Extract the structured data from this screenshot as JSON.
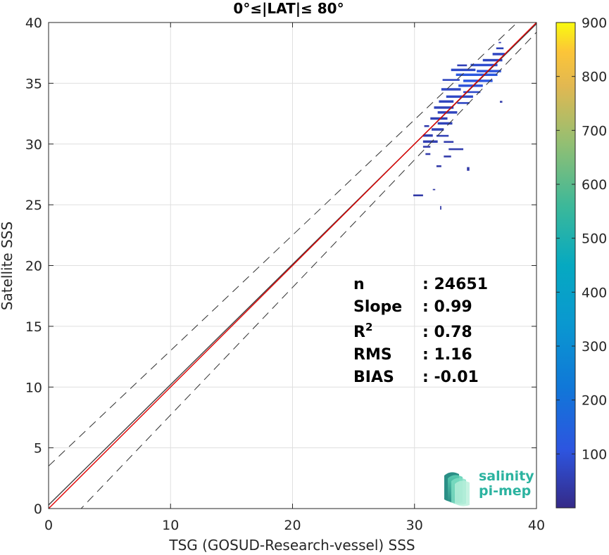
{
  "chart_data": {
    "type": "heatmap",
    "title": "0°≤|LAT|≤ 80°",
    "xlabel": "TSG (GOSUD-Research-vessel) SSS",
    "ylabel": "Satellite SSS",
    "xlim": [
      0,
      40
    ],
    "ylim": [
      0,
      40
    ],
    "x_ticks": [
      "0",
      "10",
      "20",
      "30",
      "40"
    ],
    "y_ticks": [
      "0",
      "5",
      "10",
      "15",
      "20",
      "25",
      "30",
      "35",
      "40"
    ],
    "grid": true,
    "colorbar": {
      "range": [
        0,
        900
      ],
      "ticks": [
        "100",
        "200",
        "300",
        "400",
        "500",
        "600",
        "700",
        "800",
        "900"
      ],
      "colormap": "parula"
    },
    "reference_lines": [
      {
        "name": "fit",
        "slope": 0.99,
        "intercept": 0.3,
        "color": "#404040"
      },
      {
        "name": "one-to-one",
        "slope": 1.0,
        "intercept": 0.0,
        "color": "#e00000"
      },
      {
        "name": "upper bound",
        "slope": 0.95,
        "intercept": 3.5,
        "color": "#303030",
        "dashed": true
      },
      {
        "name": "lower bound",
        "slope": 1.05,
        "intercept": -2.8,
        "color": "#303030",
        "dashed": true
      }
    ],
    "density_cells": [
      {
        "x": 36.9,
        "y": 38.3,
        "w": 0.2,
        "h": 0.1,
        "count": 20
      },
      {
        "x": 36.7,
        "y": 37.8,
        "w": 0.6,
        "h": 0.15,
        "count": 35
      },
      {
        "x": 36.4,
        "y": 37.3,
        "w": 1.0,
        "h": 0.2,
        "count": 45
      },
      {
        "x": 35.6,
        "y": 36.8,
        "w": 1.6,
        "h": 0.2,
        "count": 40
      },
      {
        "x": 33.5,
        "y": 36.4,
        "w": 0.8,
        "h": 0.15,
        "count": 30
      },
      {
        "x": 34.6,
        "y": 36.4,
        "w": 2.2,
        "h": 0.2,
        "count": 60
      },
      {
        "x": 33.0,
        "y": 36.0,
        "w": 2.0,
        "h": 0.2,
        "count": 50
      },
      {
        "x": 35.1,
        "y": 35.9,
        "w": 2.0,
        "h": 0.2,
        "count": 75
      },
      {
        "x": 33.4,
        "y": 35.6,
        "w": 3.4,
        "h": 0.2,
        "count": 90
      },
      {
        "x": 32.3,
        "y": 35.2,
        "w": 1.4,
        "h": 0.15,
        "count": 40
      },
      {
        "x": 34.0,
        "y": 35.1,
        "w": 2.4,
        "h": 0.2,
        "count": 85
      },
      {
        "x": 33.6,
        "y": 34.7,
        "w": 2.0,
        "h": 0.2,
        "count": 70
      },
      {
        "x": 32.2,
        "y": 34.4,
        "w": 1.6,
        "h": 0.2,
        "count": 45
      },
      {
        "x": 34.0,
        "y": 34.2,
        "w": 1.4,
        "h": 0.15,
        "count": 55
      },
      {
        "x": 32.6,
        "y": 33.8,
        "w": 2.2,
        "h": 0.2,
        "count": 50
      },
      {
        "x": 32.0,
        "y": 33.4,
        "w": 1.2,
        "h": 0.2,
        "count": 40
      },
      {
        "x": 33.5,
        "y": 33.3,
        "w": 1.0,
        "h": 0.15,
        "count": 45
      },
      {
        "x": 31.6,
        "y": 32.9,
        "w": 1.6,
        "h": 0.2,
        "count": 35
      },
      {
        "x": 31.9,
        "y": 32.5,
        "w": 1.6,
        "h": 0.2,
        "count": 40
      },
      {
        "x": 31.3,
        "y": 32.0,
        "w": 1.4,
        "h": 0.2,
        "count": 30
      },
      {
        "x": 31.9,
        "y": 31.6,
        "w": 1.2,
        "h": 0.2,
        "count": 35
      },
      {
        "x": 30.8,
        "y": 31.4,
        "w": 0.4,
        "h": 0.15,
        "count": 20
      },
      {
        "x": 31.4,
        "y": 31.1,
        "w": 1.0,
        "h": 0.2,
        "count": 30
      },
      {
        "x": 30.7,
        "y": 30.6,
        "w": 0.8,
        "h": 0.2,
        "count": 25
      },
      {
        "x": 31.8,
        "y": 30.6,
        "w": 1.0,
        "h": 0.15,
        "count": 30
      },
      {
        "x": 30.7,
        "y": 30.1,
        "w": 1.2,
        "h": 0.2,
        "count": 25
      },
      {
        "x": 32.4,
        "y": 30.1,
        "w": 0.8,
        "h": 0.15,
        "count": 20
      },
      {
        "x": 30.7,
        "y": 29.7,
        "w": 0.6,
        "h": 0.15,
        "count": 15
      },
      {
        "x": 32.8,
        "y": 29.5,
        "w": 1.2,
        "h": 0.15,
        "count": 20
      },
      {
        "x": 30.9,
        "y": 29.1,
        "w": 0.4,
        "h": 0.15,
        "count": 15
      },
      {
        "x": 32.4,
        "y": 28.9,
        "w": 0.6,
        "h": 0.15,
        "count": 15
      },
      {
        "x": 31.8,
        "y": 28.1,
        "w": 0.4,
        "h": 0.15,
        "count": 12
      },
      {
        "x": 34.3,
        "y": 27.8,
        "w": 0.2,
        "h": 0.3,
        "count": 12
      },
      {
        "x": 29.9,
        "y": 25.7,
        "w": 0.8,
        "h": 0.15,
        "count": 12
      },
      {
        "x": 31.5,
        "y": 26.2,
        "w": 0.2,
        "h": 0.1,
        "count": 10
      },
      {
        "x": 32.1,
        "y": 24.6,
        "w": 0.1,
        "h": 0.3,
        "count": 10
      },
      {
        "x": 37.0,
        "y": 33.4,
        "w": 0.2,
        "h": 0.15,
        "count": 15
      }
    ],
    "stats": [
      {
        "label": "n",
        "value": ": 24651"
      },
      {
        "label": "Slope",
        "value": ": 0.99"
      },
      {
        "label": "R",
        "sup": "2",
        "value": ": 0.78"
      },
      {
        "label": "RMS",
        "value": ": 1.16"
      },
      {
        "label": "BIAS",
        "value": ": -0.01"
      }
    ]
  },
  "logo": {
    "line1": "salinity",
    "line2": "pi-mep"
  }
}
